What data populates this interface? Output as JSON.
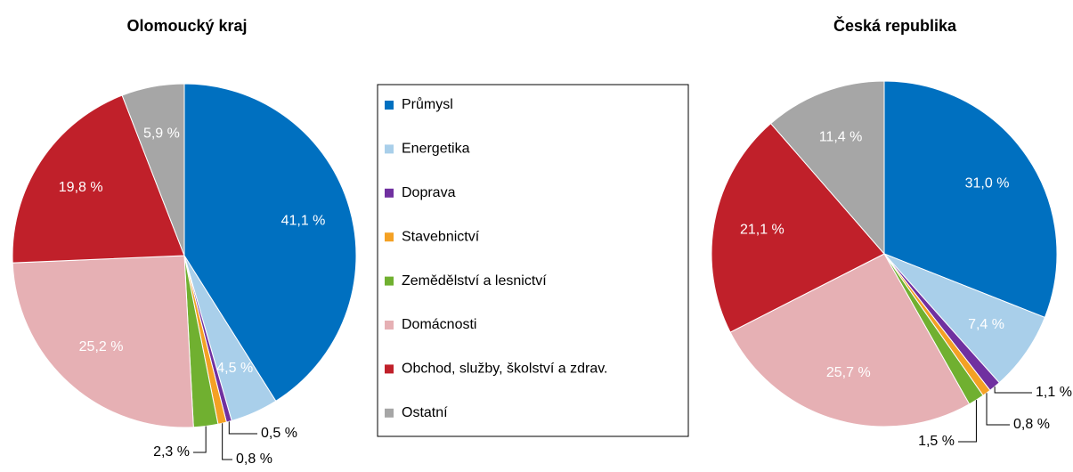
{
  "chart_data": [
    {
      "type": "pie",
      "title": "Olomoucký kraj",
      "categories": [
        "Průmysl",
        "Energetika",
        "Doprava",
        "Stavebnictví",
        "Zemědělství a lesnictví",
        "Domácnosti",
        "Obchod, služby, školství a zdrav.",
        "Ostatní"
      ],
      "colors": [
        "#0070c0",
        "#a9cfea",
        "#7030a0",
        "#f4a124",
        "#70b030",
        "#e6b0b4",
        "#c0202a",
        "#a6a6a6"
      ],
      "values": [
        41.1,
        4.5,
        0.5,
        0.8,
        2.3,
        25.2,
        19.8,
        5.9
      ],
      "value_labels": [
        "41,1 %",
        "4,5 %",
        "0,5 %",
        "0,8 %",
        "2,3 %",
        "25,2 %",
        "19,8 %",
        "5,9 %"
      ]
    },
    {
      "type": "pie",
      "title": "Česká republika",
      "values": [
        31.0,
        7.4,
        1.1,
        0.8,
        1.5,
        25.7,
        21.1,
        11.4
      ],
      "value_labels": [
        "31,0 %",
        "7,4 %",
        "1,1 %",
        "0,8 %",
        "1,5 %",
        "25,7 %",
        "21,1 %",
        "11,4 %"
      ]
    }
  ]
}
